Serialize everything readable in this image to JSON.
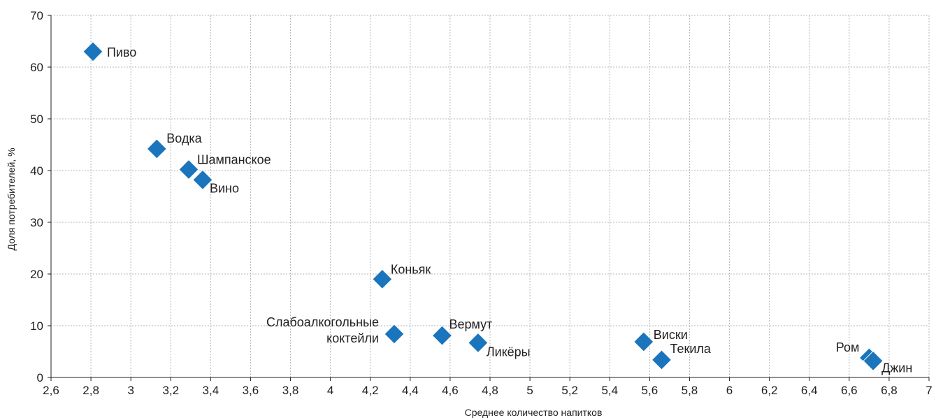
{
  "chart_data": {
    "type": "scatter",
    "xlabel": "Среднее количество напитков",
    "ylabel": "Доля потребителей, %",
    "xlim": [
      2.6,
      7
    ],
    "ylim": [
      0,
      70
    ],
    "x_ticks": [
      "2,6",
      "2,8",
      "3",
      "3,2",
      "3,4",
      "3,6",
      "3,8",
      "4",
      "4,2",
      "4,4",
      "4,6",
      "4,8",
      "5",
      "5,2",
      "5,4",
      "5,6",
      "5,8",
      "6",
      "6,2",
      "6,4",
      "6,6",
      "6,8",
      "7"
    ],
    "y_ticks": [
      "0",
      "10",
      "20",
      "30",
      "40",
      "50",
      "60",
      "70"
    ],
    "grid": true,
    "marker_color": "#1b75bc",
    "marker": "diamond",
    "points": [
      {
        "label": "Пиво",
        "x": 2.81,
        "y": 63
      },
      {
        "label": "Водка",
        "x": 3.13,
        "y": 44.2
      },
      {
        "label": "Шампанское",
        "x": 3.29,
        "y": 40.2
      },
      {
        "label": "Вино",
        "x": 3.36,
        "y": 38.2
      },
      {
        "label": "Коньяк",
        "x": 4.26,
        "y": 19
      },
      {
        "label": "Слабоалкогольные коктейли",
        "label_lines": [
          "Слабоалкогольные",
          "коктейли"
        ],
        "x": 4.32,
        "y": 8.4
      },
      {
        "label": "Вермут",
        "x": 4.56,
        "y": 8.1
      },
      {
        "label": "Ликёры",
        "x": 4.74,
        "y": 6.7
      },
      {
        "label": "Виски",
        "x": 5.57,
        "y": 6.9
      },
      {
        "label": "Текила",
        "x": 5.66,
        "y": 3.4
      },
      {
        "label": "Ром",
        "x": 6.7,
        "y": 3.8
      },
      {
        "label": "Джин",
        "x": 6.72,
        "y": 3.2
      }
    ]
  }
}
